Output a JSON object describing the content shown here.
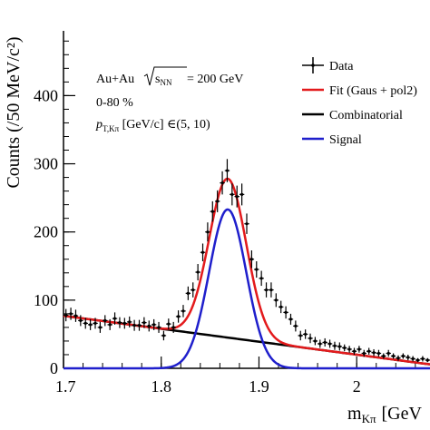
{
  "chart_data": {
    "type": "scatter",
    "title": "",
    "xlabel": "m",
    "xlabel_sub": "Kπ",
    "xlabel_unit": "[GeV",
    "ylabel": "Counts (/50 MeV/c²)",
    "xlim": [
      1.7,
      2.075
    ],
    "ylim": [
      0,
      495
    ],
    "x_ticks": [
      {
        "v": 1.7,
        "label": "1.7"
      },
      {
        "v": 1.8,
        "label": "1.8"
      },
      {
        "v": 1.9,
        "label": "1.9"
      },
      {
        "v": 2.0,
        "label": "2"
      }
    ],
    "y_ticks": [
      {
        "v": 0,
        "label": "0"
      },
      {
        "v": 100,
        "label": "100"
      },
      {
        "v": 200,
        "label": "200"
      },
      {
        "v": 300,
        "label": "300"
      },
      {
        "v": 400,
        "label": "400"
      }
    ],
    "annotations": {
      "line1_prefix": "Au+Au ",
      "line1_sqrt": "s",
      "line1_sub": "NN",
      "line1_suffix": " = 200 GeV",
      "line2": "0-80 %",
      "line3_p": "p",
      "line3_sub": "T,Kπ",
      "line3_suffix": " [GeV/c] ∈(5, 10)"
    },
    "legend_position": "top-right",
    "legend": [
      {
        "key": "data",
        "label": "Data",
        "color": "#000000"
      },
      {
        "key": "fit",
        "label": "Fit (Gaus + pol2)",
        "color": "#e31a1c"
      },
      {
        "key": "comb",
        "label": "Combinatorial",
        "color": "#000000"
      },
      {
        "key": "signal",
        "label": "Signal",
        "color": "#1f1fcc"
      }
    ],
    "fit": {
      "gaus_amplitude": 233,
      "gaus_mean": 1.868,
      "gaus_sigma": 0.019,
      "pol2": [
        77,
        -190,
        0
      ],
      "pol2_x0": 1.7
    },
    "series": [
      {
        "name": "Data",
        "x": [
          1.7025,
          1.7075,
          1.7125,
          1.7175,
          1.7225,
          1.7275,
          1.7325,
          1.7375,
          1.7425,
          1.7475,
          1.7525,
          1.7575,
          1.7625,
          1.7675,
          1.7725,
          1.7775,
          1.7825,
          1.7875,
          1.7925,
          1.7975,
          1.8025,
          1.8075,
          1.8125,
          1.8175,
          1.8225,
          1.8275,
          1.8325,
          1.8375,
          1.8425,
          1.8475,
          1.8525,
          1.8575,
          1.8625,
          1.8675,
          1.8725,
          1.8775,
          1.8825,
          1.8875,
          1.8925,
          1.8975,
          1.9025,
          1.9075,
          1.9125,
          1.9175,
          1.9225,
          1.9275,
          1.9325,
          1.9375,
          1.9425,
          1.9475,
          1.9525,
          1.9575,
          1.9625,
          1.9675,
          1.9725,
          1.9775,
          1.9825,
          1.9875,
          1.9925,
          1.9975,
          2.0025,
          2.0075,
          2.0125,
          2.0175,
          2.0225,
          2.0275,
          2.0325,
          2.0375,
          2.0425,
          2.0475,
          2.0525,
          2.0575,
          2.0625,
          2.0675,
          2.0725
        ],
        "y": [
          78,
          80,
          77,
          70,
          66,
          64,
          66,
          60,
          70,
          64,
          73,
          67,
          66,
          68,
          63,
          63,
          67,
          62,
          64,
          60,
          48,
          65,
          60,
          76,
          84,
          110,
          115,
          141,
          170,
          200,
          230,
          245,
          272,
          290,
          255,
          252,
          255,
          212,
          160,
          145,
          132,
          115,
          115,
          100,
          90,
          82,
          72,
          62,
          48,
          50,
          44,
          40,
          36,
          38,
          36,
          33,
          32,
          30,
          28,
          25,
          28,
          22,
          25,
          23,
          22,
          18,
          22,
          18,
          15,
          18,
          16,
          14,
          12,
          14,
          12
        ],
        "err": [
          9,
          9,
          9,
          8,
          8,
          8,
          8,
          8,
          8,
          8,
          9,
          8,
          8,
          8,
          8,
          8,
          8,
          8,
          8,
          8,
          7,
          8,
          8,
          9,
          9,
          10,
          11,
          12,
          13,
          14,
          15,
          16,
          17,
          17,
          16,
          16,
          16,
          15,
          13,
          12,
          11,
          11,
          11,
          10,
          9,
          9,
          8,
          8,
          7,
          7,
          7,
          6,
          6,
          6,
          6,
          6,
          6,
          5,
          5,
          5,
          5,
          5,
          5,
          5,
          5,
          4,
          5,
          4,
          4,
          4,
          4,
          4,
          3,
          4,
          3
        ]
      }
    ]
  }
}
